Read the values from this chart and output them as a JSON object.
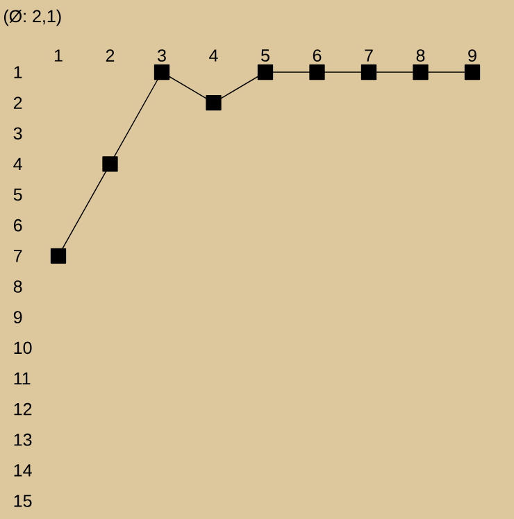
{
  "chart_data": {
    "type": "line",
    "title": "(Ø: 2,1)",
    "x": [
      1,
      2,
      3,
      4,
      5,
      6,
      7,
      8,
      9
    ],
    "series": [
      {
        "color": "#000000",
        "values": [
          7,
          4,
          1,
          2,
          1,
          1,
          1,
          1,
          1
        ]
      }
    ],
    "xlim": [
      1,
      9
    ],
    "xticks": [
      1,
      2,
      3,
      4,
      5,
      6,
      7,
      8,
      9
    ],
    "ylim": [
      15,
      1
    ],
    "yticks": [
      1,
      2,
      3,
      4,
      5,
      6,
      7,
      8,
      9,
      10,
      11,
      12,
      13,
      14,
      15
    ],
    "marker": "square",
    "line_style": "solid",
    "grid": false
  }
}
